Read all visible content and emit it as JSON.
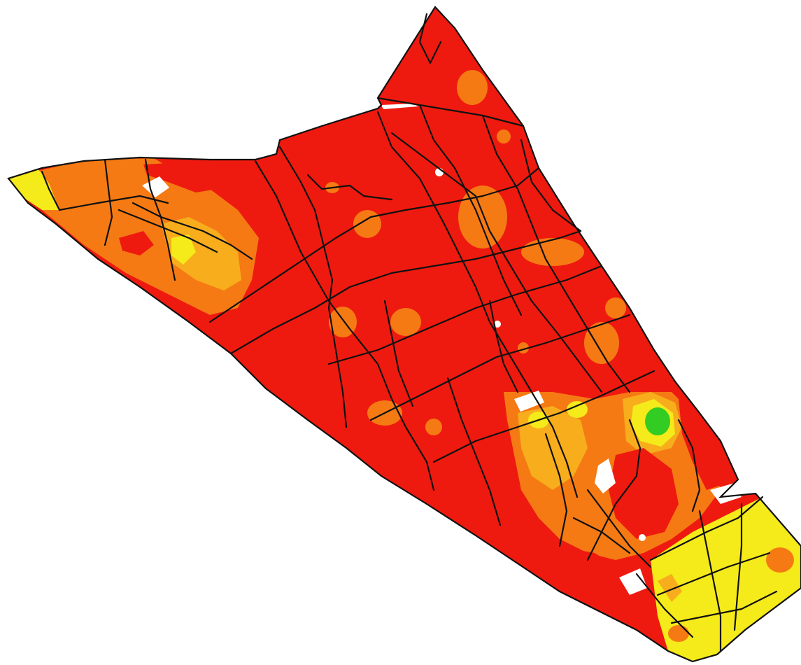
{
  "map": {
    "colors": {
      "background": "#ffffff",
      "outline": "#111111",
      "very_high": "#ee1a0f",
      "high": "#f57a14",
      "medium": "#f7ad1c",
      "low": "#f5ea1a",
      "very_low": "#33cc22"
    }
  }
}
